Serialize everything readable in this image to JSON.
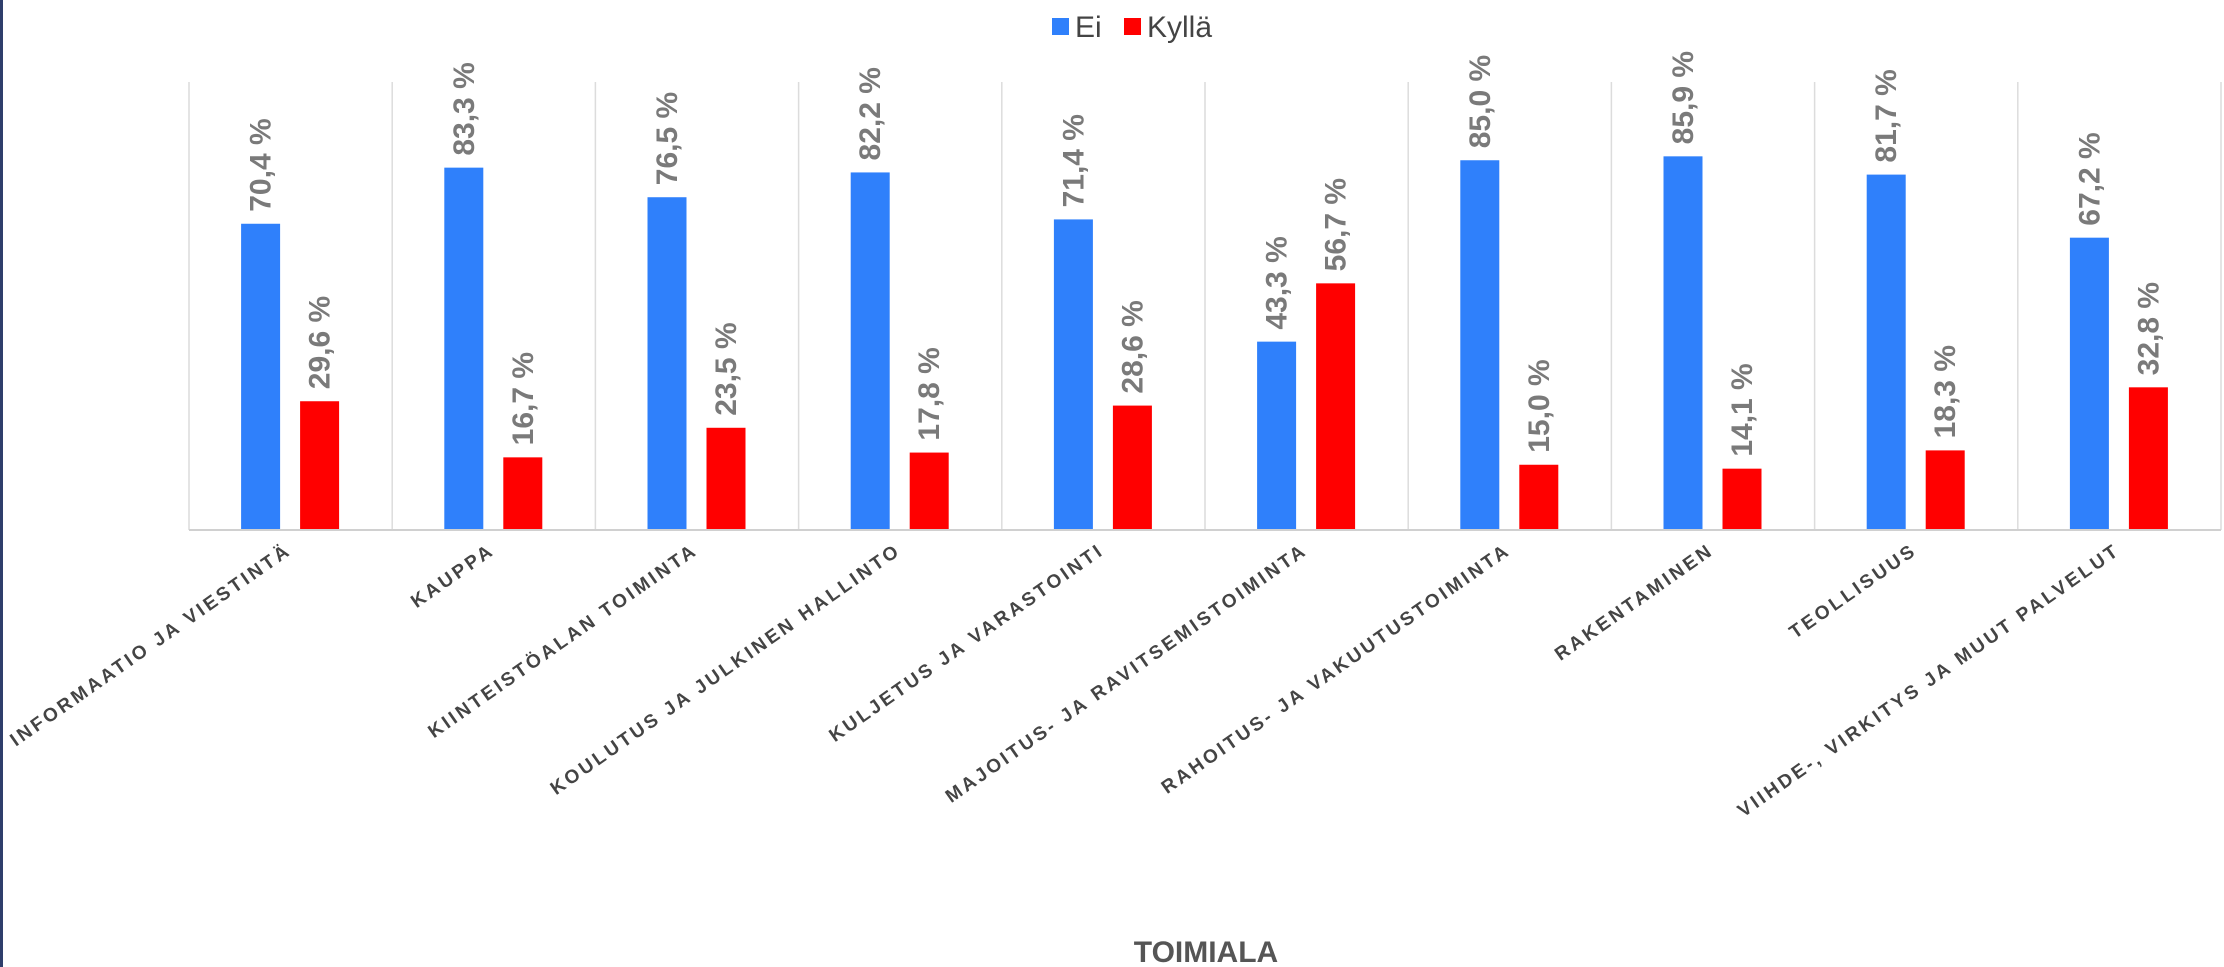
{
  "chart_data": {
    "type": "bar",
    "title": "",
    "xlabel": "TOIMIALA",
    "ylabel": "",
    "ylim": [
      0,
      100
    ],
    "legend_position": "top-center",
    "grid": "vertical separators between categories",
    "categories": [
      "INFORMAATIO JA VIESTINTÄ",
      "KAUPPA",
      "KIINTEISTÖALAN TOIMINTA",
      "KOULUTUS JA JULKINEN HALLINTO",
      "KULJETUS JA VARASTOINTI",
      "MAJOITUS- JA RAVITSEMISTOIMINTA",
      "RAHOITUS- JA VAKUUTUSTOIMINTA",
      "RAKENTAMINEN",
      "TEOLLISUUS",
      "VIIHDE-, VIRKITYS JA MUUT PALVELUT"
    ],
    "series": [
      {
        "name": "Ei",
        "color": "#2f80fb",
        "values": [
          70.4,
          83.3,
          76.5,
          82.2,
          71.4,
          43.3,
          85.0,
          85.9,
          81.7,
          67.2
        ],
        "labels": [
          "70,4 %",
          "83,3 %",
          "76,5 %",
          "82,2 %",
          "71,4 %",
          "43,3 %",
          "85,0 %",
          "85,9 %",
          "81,7 %",
          "67,2 %"
        ]
      },
      {
        "name": "Kyllä",
        "color": "#ff0000",
        "values": [
          29.6,
          16.7,
          23.5,
          17.8,
          28.6,
          56.7,
          15.0,
          14.1,
          18.3,
          32.8
        ],
        "labels": [
          "29,6 %",
          "16,7 %",
          "23,5 %",
          "17,8 %",
          "28,6 %",
          "56,7 %",
          "15,0 %",
          "14,1 %",
          "18,3 %",
          "32,8 %"
        ]
      }
    ]
  }
}
